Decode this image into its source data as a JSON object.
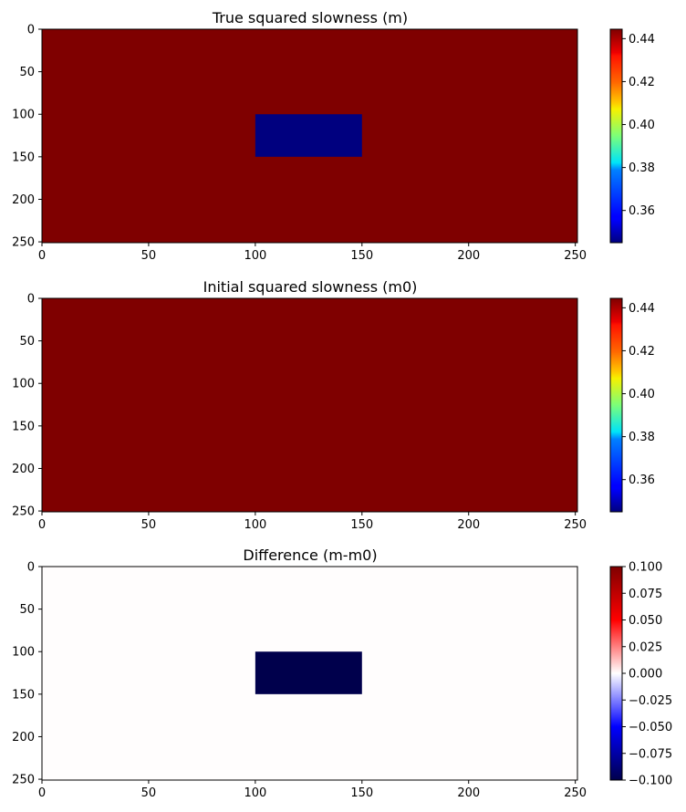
{
  "chart_data": [
    {
      "type": "heatmap",
      "title": "True squared slowness (m)",
      "xlabel": "",
      "ylabel": "",
      "x_ticks": [
        0,
        50,
        100,
        150,
        200,
        250
      ],
      "y_ticks": [
        0,
        50,
        100,
        150,
        200,
        250
      ],
      "xlim": [
        0,
        251
      ],
      "ylim": [
        251,
        0
      ],
      "colormap": "jet",
      "vmin": 0.345,
      "vmax": 0.4444,
      "colorbar_ticks": [
        "0.36",
        "0.38",
        "0.40",
        "0.42",
        "0.44"
      ],
      "colorbar_tick_values": [
        0.36,
        0.38,
        0.4,
        0.42,
        0.44
      ],
      "background_value": 0.4444,
      "regions": [
        {
          "x_range": [
            100,
            150
          ],
          "y_range": [
            100,
            150
          ],
          "value": 0.345
        }
      ]
    },
    {
      "type": "heatmap",
      "title": "Initial squared slowness (m0)",
      "xlabel": "",
      "ylabel": "",
      "x_ticks": [
        0,
        50,
        100,
        150,
        200,
        250
      ],
      "y_ticks": [
        0,
        50,
        100,
        150,
        200,
        250
      ],
      "xlim": [
        0,
        251
      ],
      "ylim": [
        251,
        0
      ],
      "colormap": "jet",
      "vmin": 0.345,
      "vmax": 0.4444,
      "colorbar_ticks": [
        "0.36",
        "0.38",
        "0.40",
        "0.42",
        "0.44"
      ],
      "colorbar_tick_values": [
        0.36,
        0.38,
        0.4,
        0.42,
        0.44
      ],
      "background_value": 0.4444,
      "regions": []
    },
    {
      "type": "heatmap",
      "title": "Difference (m-m0)",
      "xlabel": "",
      "ylabel": "",
      "x_ticks": [
        0,
        50,
        100,
        150,
        200,
        250
      ],
      "y_ticks": [
        0,
        50,
        100,
        150,
        200,
        250
      ],
      "xlim": [
        0,
        251
      ],
      "ylim": [
        251,
        0
      ],
      "colormap": "seismic",
      "vmin": -0.1,
      "vmax": 0.1,
      "colorbar_ticks": [
        "0.100",
        "0.075",
        "0.050",
        "0.025",
        "0.000",
        "−0.025",
        "−0.050",
        "−0.075",
        "−0.100"
      ],
      "colorbar_tick_values": [
        0.1,
        0.075,
        0.05,
        0.025,
        0.0,
        -0.025,
        -0.05,
        -0.075,
        -0.1
      ],
      "background_value": 0.0,
      "regions": [
        {
          "x_range": [
            100,
            150
          ],
          "y_range": [
            100,
            150
          ],
          "value": -0.1
        }
      ]
    }
  ]
}
